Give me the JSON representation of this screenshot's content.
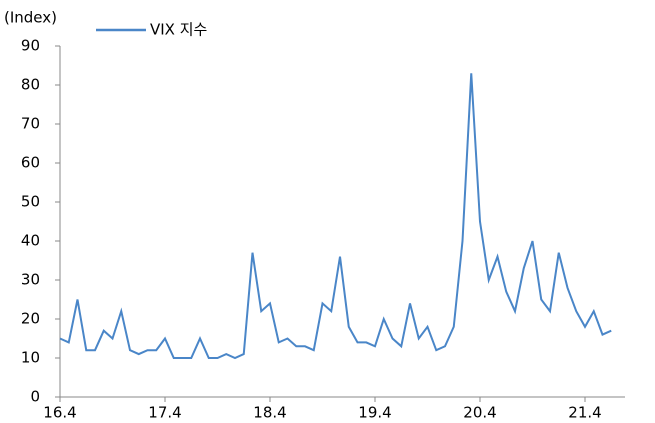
{
  "chart_data": {
    "type": "line",
    "y_label": "(Index)",
    "categories": [
      "16.4",
      null,
      null,
      null,
      null,
      null,
      null,
      null,
      null,
      null,
      null,
      null,
      "17.4",
      null,
      null,
      null,
      null,
      null,
      null,
      null,
      null,
      null,
      null,
      null,
      "18.4",
      null,
      null,
      null,
      null,
      null,
      null,
      null,
      null,
      null,
      null,
      null,
      "19.4",
      null,
      null,
      null,
      null,
      null,
      null,
      null,
      null,
      null,
      null,
      null,
      "20.4",
      null,
      null,
      null,
      null,
      null,
      null,
      null,
      null,
      null,
      null,
      null,
      "21.4",
      null,
      null,
      null
    ],
    "series": [
      {
        "name": "VIX 지수",
        "color": "#4a86c8",
        "values": [
          15,
          14,
          25,
          12,
          12,
          17,
          15,
          22,
          12,
          11,
          12,
          12,
          15,
          10,
          10,
          10,
          15,
          10,
          10,
          11,
          10,
          11,
          37,
          22,
          24,
          14,
          15,
          13,
          13,
          12,
          24,
          22,
          36,
          18,
          14,
          14,
          13,
          20,
          15,
          13,
          24,
          15,
          18,
          12,
          13,
          18,
          40,
          83,
          45,
          30,
          36,
          27,
          22,
          33,
          40,
          25,
          22,
          37,
          28,
          22,
          18,
          22,
          16,
          17
        ]
      }
    ],
    "ylim": [
      0,
      90
    ],
    "yticks": [
      0,
      10,
      20,
      30,
      40,
      50,
      60,
      70,
      80,
      90
    ],
    "grid": false
  }
}
